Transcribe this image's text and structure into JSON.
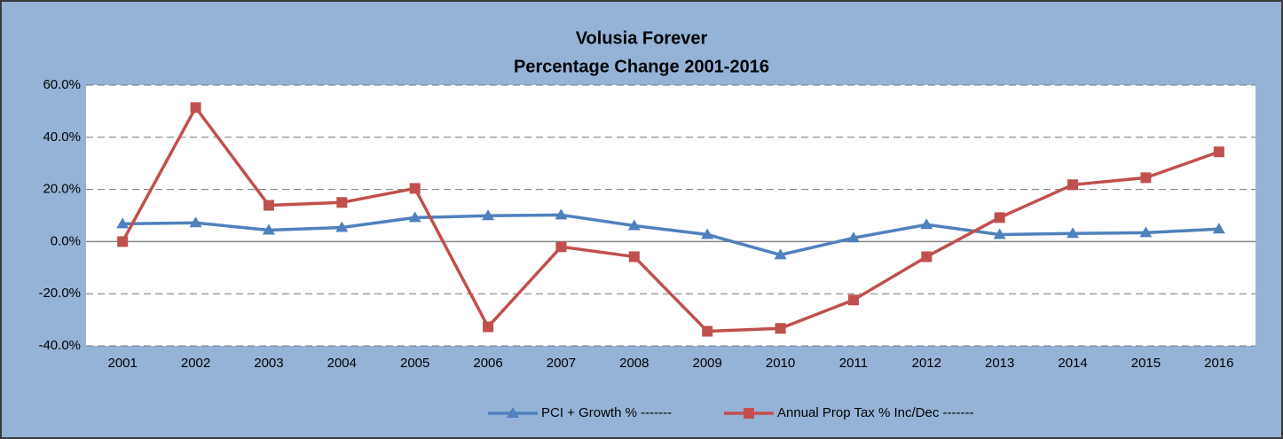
{
  "chart_data": {
    "type": "line",
    "title": "Volusia Forever",
    "subtitle": "Percentage Change 2001-2016",
    "categories": [
      "2001",
      "2002",
      "2003",
      "2004",
      "2005",
      "2006",
      "2007",
      "2008",
      "2009",
      "2010",
      "2011",
      "2012",
      "2013",
      "2014",
      "2015",
      "2016"
    ],
    "series": [
      {
        "name": "PCI + Growth % -------",
        "color": "#4f81bd",
        "marker": "triangle",
        "values": [
          6.8,
          7.2,
          4.4,
          5.4,
          9.2,
          9.9,
          10.2,
          6.1,
          2.7,
          -5.1,
          1.4,
          6.5,
          2.7,
          3.1,
          3.4,
          4.8
        ]
      },
      {
        "name": "Annual Prop Tax % Inc/Dec -------",
        "color": "#c0504d",
        "marker": "square",
        "values": [
          0,
          51.4,
          13.9,
          15,
          20.4,
          -32.7,
          -2,
          -5.8,
          -34.4,
          -33.3,
          -22.4,
          -5.8,
          9.2,
          21.8,
          24.5,
          34.4
        ]
      }
    ],
    "ylim": [
      -40,
      60
    ],
    "yticks": [
      {
        "value": -40,
        "label": "-40.0%"
      },
      {
        "value": -20,
        "label": "-20.0%"
      },
      {
        "value": 0,
        "label": "0.0%"
      },
      {
        "value": 20,
        "label": "20.0%"
      },
      {
        "value": 40,
        "label": "40.0%"
      },
      {
        "value": 60,
        "label": "60.0%"
      }
    ],
    "grid": true,
    "legend": "bottom"
  }
}
